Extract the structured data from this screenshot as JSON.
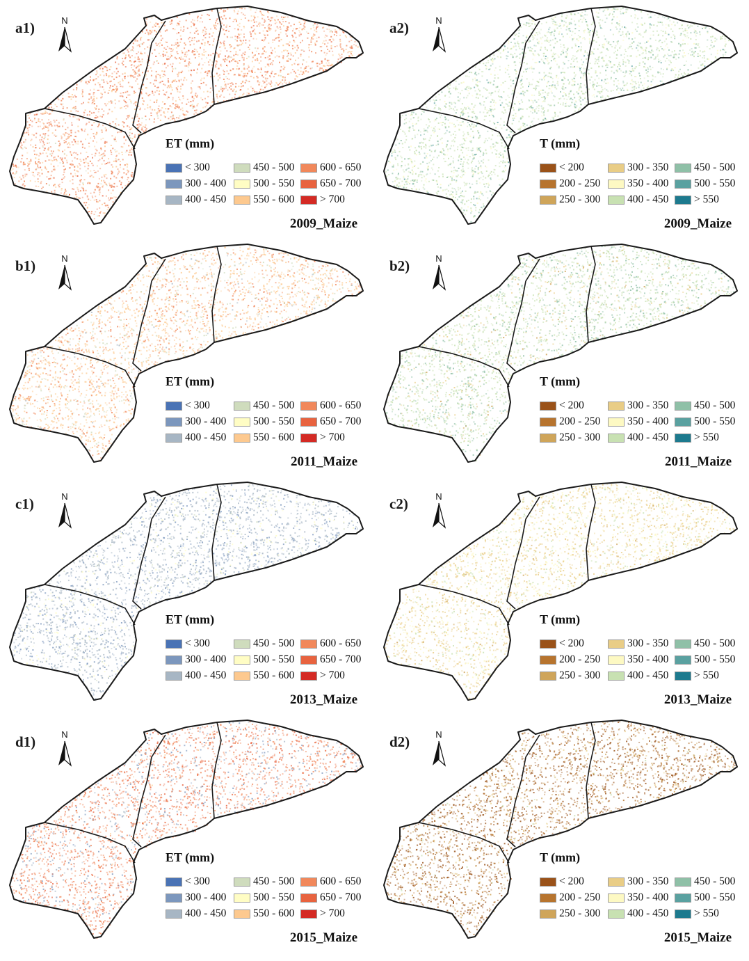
{
  "north_label": "N",
  "colors": {
    "boundary": "#1a1a1a",
    "ET": [
      "#4a73b5",
      "#7c97bd",
      "#a7b6c4",
      "#cfdcbd",
      "#fffdc4",
      "#fdc98f",
      "#f1885b",
      "#e8633f",
      "#d42a24"
    ],
    "T": [
      "#9a5219",
      "#b7742e",
      "#cfa55a",
      "#e9cd86",
      "#fdf9c3",
      "#c8e1b2",
      "#8fc0a7",
      "#5aa1a0",
      "#1d7a8e"
    ]
  },
  "legends": {
    "ET": {
      "title": "ET (mm)",
      "items": [
        "< 300",
        "300 - 400",
        "400 - 450",
        "450 - 500",
        "500 - 550",
        "550 - 600",
        "600 - 650",
        "650 - 700",
        "> 700"
      ]
    },
    "T": {
      "title": "T (mm)",
      "items": [
        "< 200",
        "200 - 250",
        "250 - 300",
        "300 - 350",
        "350 - 400",
        "400 - 450",
        "450 - 500",
        "500 - 550",
        "> 550"
      ]
    }
  },
  "panels": [
    {
      "label": "a1)",
      "variable": "ET",
      "caption": "2009_Maize",
      "dominant_classes": [
        6,
        5,
        7,
        3
      ]
    },
    {
      "label": "a2)",
      "variable": "T",
      "caption": "2009_Maize",
      "dominant_classes": [
        5,
        6,
        4,
        7
      ]
    },
    {
      "label": "b1)",
      "variable": "ET",
      "caption": "2011_Maize",
      "dominant_classes": [
        5,
        6,
        3,
        2
      ]
    },
    {
      "label": "b2)",
      "variable": "T",
      "caption": "2011_Maize",
      "dominant_classes": [
        5,
        6,
        3,
        2
      ]
    },
    {
      "label": "c1)",
      "variable": "ET",
      "caption": "2013_Maize",
      "dominant_classes": [
        2,
        1,
        4,
        3
      ]
    },
    {
      "label": "c2)",
      "variable": "T",
      "caption": "2013_Maize",
      "dominant_classes": [
        3,
        4,
        5,
        2
      ]
    },
    {
      "label": "d1)",
      "variable": "ET",
      "caption": "2015_Maize",
      "dominant_classes": [
        6,
        7,
        1,
        2,
        5
      ]
    },
    {
      "label": "d2)",
      "variable": "T",
      "caption": "2015_Maize",
      "dominant_classes": [
        0,
        1,
        2,
        3,
        5
      ]
    }
  ]
}
